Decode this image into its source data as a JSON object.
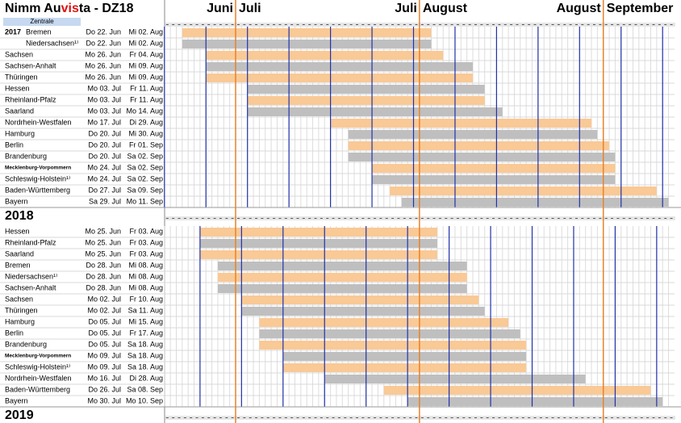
{
  "header": {
    "title": [
      "Nimm Au",
      "vis",
      "ta - DZ18"
    ],
    "subtitle": "Zentrale",
    "months": [
      "Juni",
      "Juli",
      "Juli",
      "August",
      "August",
      "September"
    ]
  },
  "colors": {
    "bar_odd": "#f9c996",
    "bar_even": "#bfbfbf",
    "week_line": "#2233aa",
    "month_line": "#e8822a"
  },
  "sections": [
    {
      "label": "2017",
      "rows": [
        [
          "Bremen",
          "Do 22. Jun",
          "Mi 02. Aug"
        ],
        [
          "Niedersachsen¹⁾",
          "Do 22. Jun",
          "Mi 02. Aug"
        ],
        [
          "Sachsen",
          "Mo 26. Jun",
          "Fr 04. Aug"
        ],
        [
          "Sachsen-Anhalt",
          "Mo 26. Jun",
          "Mi 09. Aug"
        ],
        [
          "Thüringen",
          "Mo 26. Jun",
          "Mi 09. Aug"
        ],
        [
          "Hessen",
          "Mo 03. Jul",
          "Fr 11. Aug"
        ],
        [
          "Rheinland-Pfalz",
          "Mo 03. Jul",
          "Fr 11. Aug"
        ],
        [
          "Saarland",
          "Mo 03. Jul",
          "Mo 14. Aug"
        ],
        [
          "Nordrhein-Westfalen",
          "Mo 17. Jul",
          "Di 29. Aug"
        ],
        [
          "Hamburg",
          "Do 20. Jul",
          "Mi 30. Aug"
        ],
        [
          "Berlin",
          "Do 20. Jul",
          "Fr 01. Sep"
        ],
        [
          "Brandenburg",
          "Do 20. Jul",
          "Sa 02. Sep"
        ],
        [
          "Mecklenburg-Vorpommern",
          "Mo 24. Jul",
          "Sa 02. Sep"
        ],
        [
          "Schleswig-Holstein¹⁾",
          "Mo 24. Jul",
          "Sa 02. Sep"
        ],
        [
          "Baden-Württemberg",
          "Do 27. Jul",
          "Sa 09. Sep"
        ],
        [
          "Bayern",
          "Sa 29. Jul",
          "Mo 11. Sep"
        ]
      ]
    },
    {
      "label": "2018",
      "rows": [
        [
          "Hessen",
          "Mo 25. Jun",
          "Fr 03. Aug"
        ],
        [
          "Rheinland-Pfalz",
          "Mo 25. Jun",
          "Fr 03. Aug"
        ],
        [
          "Saarland",
          "Mo 25. Jun",
          "Fr 03. Aug"
        ],
        [
          "Bremen",
          "Do 28. Jun",
          "Mi 08. Aug"
        ],
        [
          "Niedersachsen¹⁾",
          "Do 28. Jun",
          "Mi 08. Aug"
        ],
        [
          "Sachsen-Anhalt",
          "Do 28. Jun",
          "Mi 08. Aug"
        ],
        [
          "Sachsen",
          "Mo 02. Jul",
          "Fr 10. Aug"
        ],
        [
          "Thüringen",
          "Mo 02. Jul",
          "Sa 11. Aug"
        ],
        [
          "Hamburg",
          "Do 05. Jul",
          "Mi 15. Aug"
        ],
        [
          "Berlin",
          "Do 05. Jul",
          "Fr 17. Aug"
        ],
        [
          "Brandenburg",
          "Do 05. Jul",
          "Sa 18. Aug"
        ],
        [
          "Mecklenburg-Vorpommern",
          "Mo 09. Jul",
          "Sa 18. Aug"
        ],
        [
          "Schleswig-Holstein¹⁾",
          "Mo 09. Jul",
          "Sa 18. Aug"
        ],
        [
          "Nordrhein-Westfalen",
          "Mo 16. Jul",
          "Di 28. Aug"
        ],
        [
          "Baden-Württemberg",
          "Do 26. Jul",
          "Sa 08. Sep"
        ],
        [
          "Bayern",
          "Mo 30. Jul",
          "Mo 10. Sep"
        ]
      ]
    },
    {
      "label": "2019"
    }
  ]
}
